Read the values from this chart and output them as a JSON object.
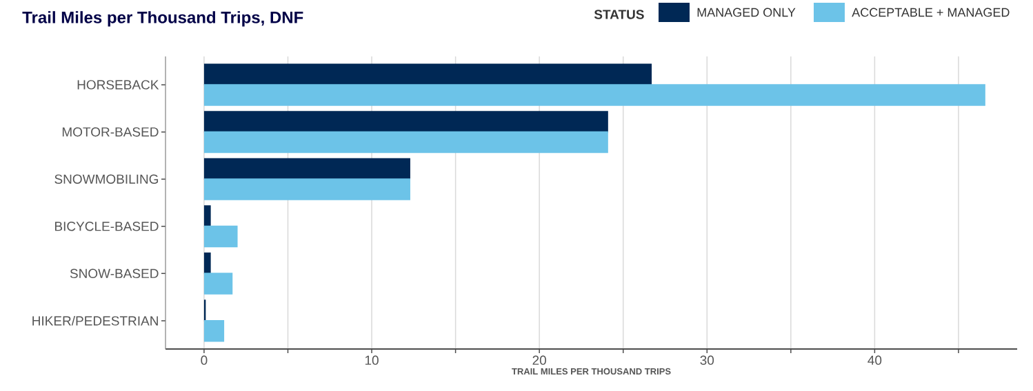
{
  "chart_data": {
    "type": "bar",
    "orientation": "horizontal",
    "title": "Trail Miles per Thousand Trips, DNF",
    "xlabel": "TRAIL MILES PER THOUSAND TRIPS",
    "legend_title": "STATUS",
    "categories": [
      "HORSEBACK",
      "MOTOR-BASED",
      "SNOWMOBILING",
      "BICYCLE-BASED",
      "SNOW-BASED",
      "HIKER/PEDESTRIAN"
    ],
    "series": [
      {
        "name": "MANAGED ONLY",
        "color": "#002855",
        "values": [
          26.7,
          24.1,
          12.3,
          0.4,
          0.4,
          0.1
        ]
      },
      {
        "name": "ACCEPTABLE + MANAGED",
        "color": "#6cc3e8",
        "values": [
          46.6,
          24.1,
          12.3,
          2.0,
          1.7,
          1.2
        ]
      }
    ],
    "xlim": [
      -2.3,
      48.5
    ],
    "xticks": [
      0,
      {
        "value": 5,
        "label": null
      },
      10,
      {
        "value": 15,
        "label": null
      },
      20,
      {
        "value": 25,
        "label": null
      },
      30,
      {
        "value": 35,
        "label": null
      },
      40,
      {
        "value": 45,
        "label": null
      }
    ],
    "grid": "x",
    "legend": "top right"
  }
}
